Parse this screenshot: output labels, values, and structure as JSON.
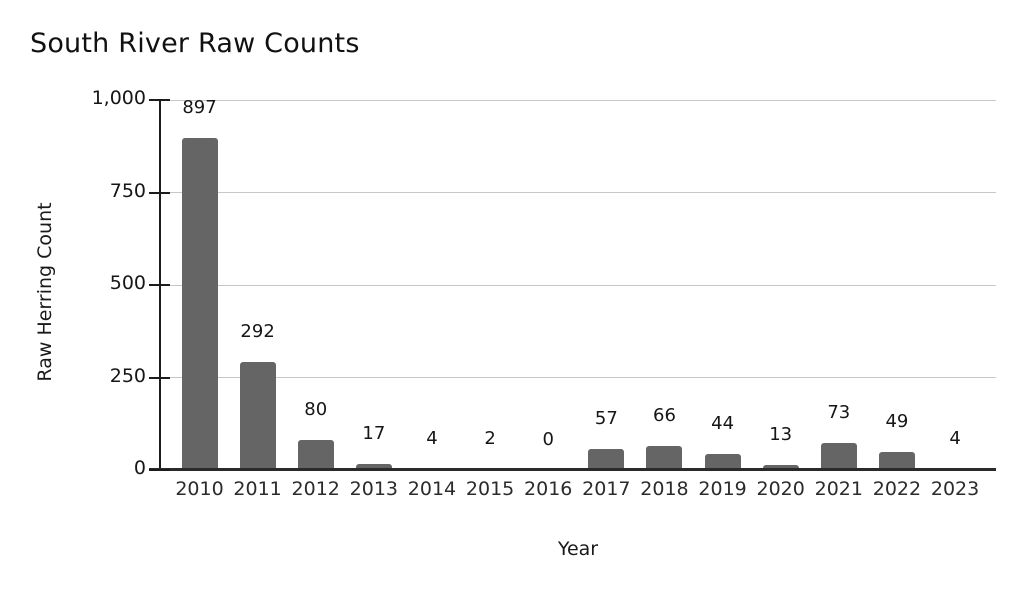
{
  "chart_data": {
    "type": "bar",
    "title": "South River Raw Counts",
    "xlabel": "Year",
    "ylabel": "Raw Herring Count",
    "categories": [
      "2010",
      "2011",
      "2012",
      "2013",
      "2014",
      "2015",
      "2016",
      "2017",
      "2018",
      "2019",
      "2020",
      "2021",
      "2022",
      "2023"
    ],
    "values": [
      897,
      292,
      80,
      17,
      4,
      2,
      0,
      57,
      66,
      44,
      13,
      73,
      49,
      4
    ],
    "ylim": [
      0,
      1000
    ],
    "yticks": [
      0,
      250,
      500,
      750,
      1000
    ],
    "ytick_labels": [
      "0",
      "250",
      "500",
      "750",
      "1,000"
    ],
    "grid": "horizontal",
    "legend": "none",
    "data_labels_shown": true,
    "colors": {
      "bar": "#656565",
      "axis": "#1c1c1c",
      "gridline": "#c8c8c8",
      "text": "#1a1a1a",
      "background": "#ffffff"
    }
  }
}
